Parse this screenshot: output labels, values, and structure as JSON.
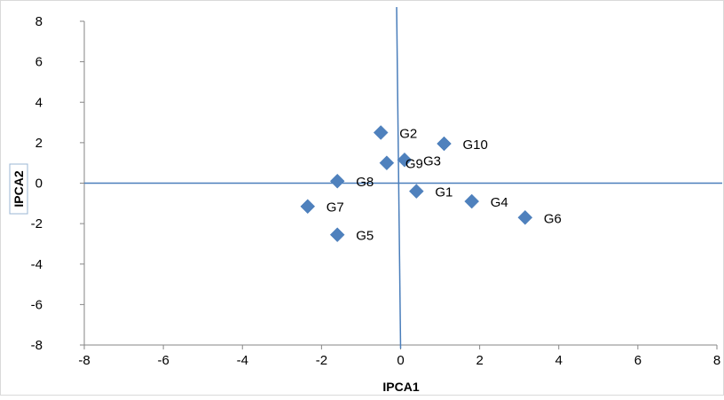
{
  "chart_data": {
    "type": "scatter",
    "xlabel": "IPCA1",
    "ylabel": "IPCA2",
    "xlim": [
      -8,
      8
    ],
    "ylim": [
      -8,
      8
    ],
    "x_ticks": [
      "-8",
      "-6",
      "-4",
      "-2",
      "0",
      "2",
      "4",
      "6",
      "8"
    ],
    "y_ticks": [
      "8",
      "6",
      "4",
      "2",
      "0",
      "-2",
      "-4",
      "-6",
      "-8"
    ],
    "grid": false,
    "legend": "none",
    "marker": "diamond",
    "marker_color": "#4f81bd",
    "reference_line_color": "#4a7ebb",
    "points": [
      {
        "label": "G1",
        "x": 0.4,
        "y": -0.4
      },
      {
        "label": "G2",
        "x": -0.5,
        "y": 2.5
      },
      {
        "label": "G3",
        "x": 0.1,
        "y": 1.15
      },
      {
        "label": "G4",
        "x": 1.8,
        "y": -0.9
      },
      {
        "label": "G5",
        "x": -1.6,
        "y": -2.55
      },
      {
        "label": "G6",
        "x": 3.15,
        "y": -1.7
      },
      {
        "label": "G7",
        "x": -2.35,
        "y": -1.15
      },
      {
        "label": "G8",
        "x": -1.6,
        "y": 0.1
      },
      {
        "label": "G9",
        "x": -0.35,
        "y": 1.0
      },
      {
        "label": "G10",
        "x": 1.1,
        "y": 1.95
      }
    ]
  }
}
